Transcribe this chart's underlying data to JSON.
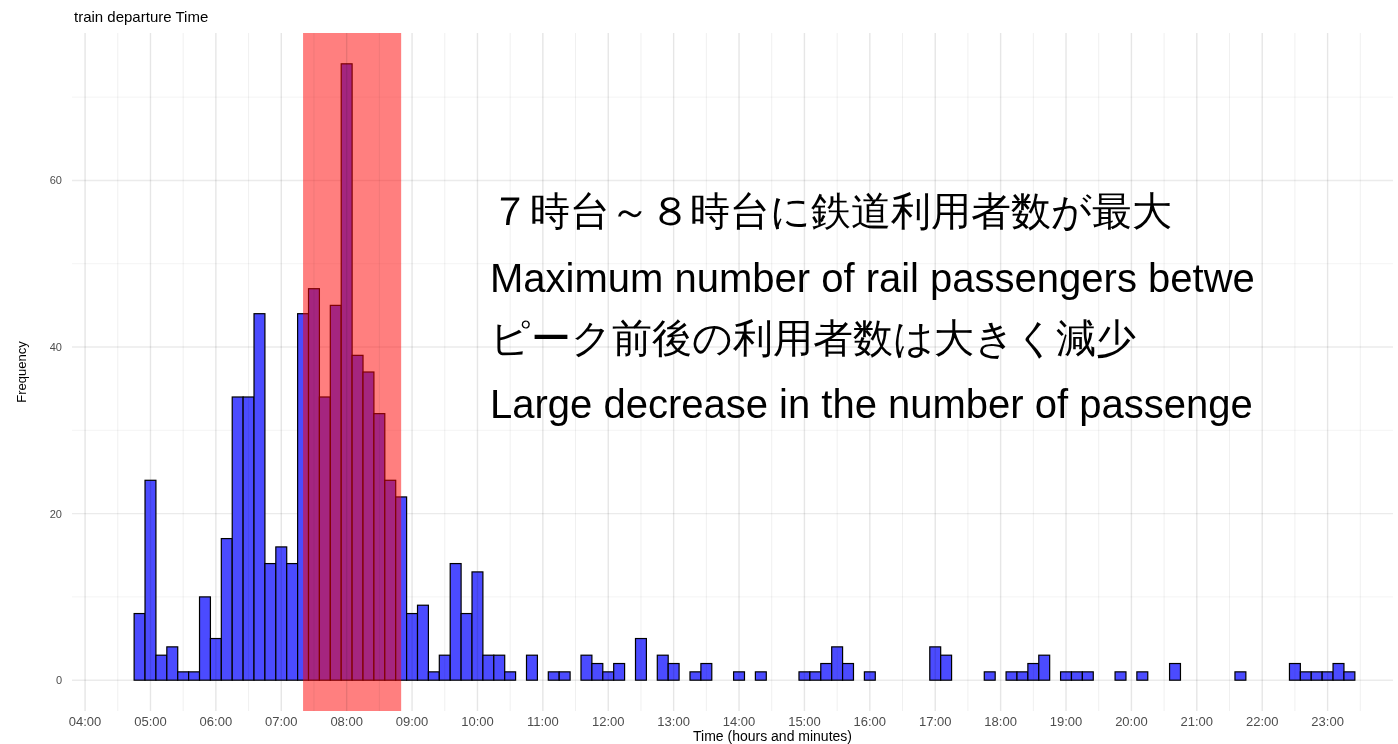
{
  "chart_data": {
    "type": "histogram",
    "title": "train departure Time",
    "xlabel": "Time (hours and minutes)",
    "ylabel": "Frequency",
    "annotations": [
      "７時台～８時台に鉄道利用者数が最大",
      "Maximum number of rail passengers betwe",
      "ピーク前後の利用者数は大きく減少",
      "Large decrease in the number of passenge"
    ],
    "bins": [
      4.75,
      4.9167,
      5.0833,
      5.25,
      5.4167,
      5.5833,
      5.75,
      5.9167,
      6.0833,
      6.25,
      6.4167,
      6.5833,
      6.75,
      6.9167,
      7.0833,
      7.25,
      7.4167,
      7.5833,
      7.75,
      7.9167,
      8.0833,
      8.25,
      8.4167,
      8.5833,
      8.75,
      8.9167,
      9.0833,
      9.25,
      9.4167,
      9.5833,
      9.75,
      9.9167,
      10.0833,
      10.25,
      10.4167,
      10.5833,
      10.75,
      10.9167,
      11.0833,
      11.25,
      11.4167,
      11.5833,
      11.75,
      11.9167,
      12.0833,
      12.25,
      12.4167,
      12.5833,
      12.75,
      12.9167,
      13.0833,
      13.25,
      13.4167,
      13.5833,
      13.75,
      13.9167,
      14.0833,
      14.25,
      14.4167,
      14.5833,
      14.75,
      14.9167,
      15.0833,
      15.25,
      15.4167,
      15.5833,
      15.75,
      15.9167,
      16.0833,
      16.25,
      16.4167,
      16.5833,
      16.75,
      16.9167,
      17.0833,
      17.25,
      17.4167,
      17.5833,
      17.75,
      17.9167,
      18.0833,
      18.25,
      18.4167,
      18.5833,
      18.75,
      18.9167,
      19.0833,
      19.25,
      19.4167,
      19.5833,
      19.75,
      19.9167,
      20.0833,
      20.25,
      20.4167,
      20.5833,
      20.75,
      20.9167,
      21.0833,
      21.25,
      21.4167,
      21.5833,
      21.75,
      21.9167,
      22.0833,
      22.25,
      22.4167,
      22.5833,
      22.75,
      22.9167,
      23.0833,
      23.25,
      23.4167
    ],
    "values": [
      8,
      24,
      3,
      4,
      1,
      1,
      10,
      5,
      17,
      34,
      34,
      44,
      14,
      16,
      14,
      44,
      47,
      34,
      45,
      74,
      39,
      37,
      32,
      24,
      22,
      8,
      9,
      1,
      3,
      14,
      8,
      13,
      3,
      3,
      1,
      0,
      3,
      0,
      1,
      1,
      0,
      3,
      2,
      1,
      2,
      0,
      5,
      0,
      3,
      2,
      0,
      1,
      2,
      0,
      0,
      1,
      0,
      1,
      0,
      0,
      0,
      1,
      1,
      2,
      4,
      2,
      0,
      1,
      0,
      0,
      0,
      0,
      0,
      4,
      3,
      0,
      0,
      0,
      1,
      0,
      1,
      1,
      2,
      3,
      0,
      1,
      1,
      1,
      0,
      0,
      1,
      0,
      1,
      0,
      0,
      2,
      0,
      0,
      0,
      0,
      0,
      1,
      0,
      0,
      0,
      0,
      2,
      1,
      1,
      1,
      2,
      1
    ],
    "color": "#4b4bff",
    "bands": [
      {
        "axis": "x",
        "from": 7.3333,
        "to": 8.8333,
        "color": "#ff0000"
      }
    ],
    "xlim": [
      3.8,
      24
    ],
    "xticks": [
      {
        "value": 4,
        "label": "04:00"
      },
      {
        "value": 4.5,
        "label": null
      },
      {
        "value": 5,
        "label": "05:00"
      },
      {
        "value": 5.5,
        "label": null
      },
      {
        "value": 6,
        "label": "06:00"
      },
      {
        "value": 6.5,
        "label": null
      },
      {
        "value": 7,
        "label": "07:00"
      },
      {
        "value": 7.5,
        "label": null
      },
      {
        "value": 8,
        "label": "08:00"
      },
      {
        "value": 8.5,
        "label": null
      },
      {
        "value": 9,
        "label": "09:00"
      },
      {
        "value": 9.5,
        "label": null
      },
      {
        "value": 10,
        "label": "10:00"
      },
      {
        "value": 10.5,
        "label": null
      },
      {
        "value": 11,
        "label": "11:00"
      },
      {
        "value": 11.5,
        "label": null
      },
      {
        "value": 12,
        "label": "12:00"
      },
      {
        "value": 12.5,
        "label": null
      },
      {
        "value": 13,
        "label": "13:00"
      },
      {
        "value": 13.5,
        "label": null
      },
      {
        "value": 14,
        "label": "14:00"
      },
      {
        "value": 14.5,
        "label": null
      },
      {
        "value": 15,
        "label": "15:00"
      },
      {
        "value": 15.5,
        "label": null
      },
      {
        "value": 16,
        "label": "16:00"
      },
      {
        "value": 16.5,
        "label": null
      },
      {
        "value": 17,
        "label": "17:00"
      },
      {
        "value": 17.5,
        "label": null
      },
      {
        "value": 18,
        "label": "18:00"
      },
      {
        "value": 18.5,
        "label": null
      },
      {
        "value": 19,
        "label": "19:00"
      },
      {
        "value": 19.5,
        "label": null
      },
      {
        "value": 20,
        "label": "20:00"
      },
      {
        "value": 20.5,
        "label": null
      },
      {
        "value": 21,
        "label": "21:00"
      },
      {
        "value": 21.5,
        "label": null
      },
      {
        "value": 22,
        "label": "22:00"
      },
      {
        "value": 22.5,
        "label": null
      },
      {
        "value": 23,
        "label": "23:00"
      },
      {
        "value": 23.5,
        "label": null
      }
    ],
    "ylim": [
      -3.7,
      77.7
    ],
    "yticks": [
      0,
      {
        "value": 10,
        "label": null
      },
      20,
      {
        "value": 30,
        "label": null
      },
      40,
      {
        "value": 50,
        "label": null
      },
      60,
      {
        "value": 70,
        "label": null
      }
    ],
    "grid": true
  }
}
